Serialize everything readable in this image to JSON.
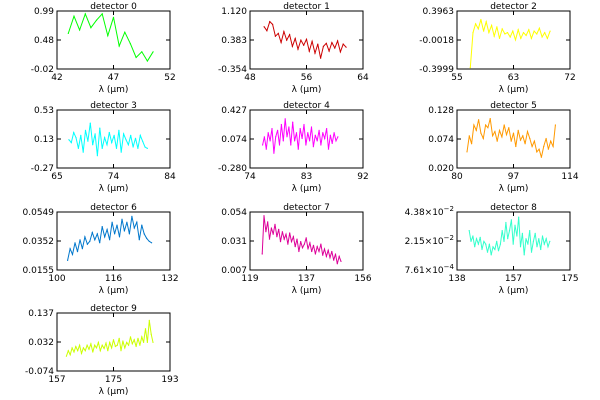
{
  "chart_data": [
    {
      "type": "line",
      "title": "detector 0",
      "xlabel": "λ (μm)",
      "color": "#00ff00",
      "xlim": [
        42,
        52
      ],
      "ylim": [
        -0.02,
        0.99
      ],
      "xticks": [
        "42",
        "47",
        "52"
      ],
      "yticks": [
        "0.99",
        "0.48",
        "-0.02"
      ],
      "x": [
        43,
        43.5,
        44,
        44.5,
        45,
        45.5,
        46,
        46.5,
        47,
        47.5,
        48,
        48.5,
        49,
        49.5,
        50,
        50.5
      ],
      "y": [
        0.6,
        0.9,
        0.66,
        0.94,
        0.7,
        0.83,
        0.94,
        0.56,
        0.88,
        0.38,
        0.62,
        0.42,
        0.18,
        0.28,
        0.12,
        0.28
      ]
    },
    {
      "type": "line",
      "title": "detector 1",
      "xlabel": "λ (μm)",
      "color": "#cc0000",
      "xlim": [
        48,
        64
      ],
      "ylim": [
        -0.354,
        1.12
      ],
      "xticks": [
        "48",
        "56",
        "64"
      ],
      "yticks": [
        "1.120",
        "0.383",
        "-0.354"
      ],
      "x": [
        50,
        50.4,
        50.8,
        51.2,
        51.6,
        52,
        52.4,
        52.8,
        53.2,
        53.6,
        54,
        54.4,
        54.8,
        55.2,
        55.6,
        56,
        56.4,
        56.8,
        57.2,
        57.6,
        58,
        58.4,
        58.8,
        59.2,
        59.6,
        60,
        60.4,
        60.8,
        61.2,
        61.6
      ],
      "y": [
        0.72,
        0.62,
        0.85,
        0.78,
        0.48,
        0.55,
        0.32,
        0.6,
        0.38,
        0.52,
        0.22,
        0.42,
        0.15,
        0.38,
        0.25,
        0.4,
        0.1,
        0.35,
        0.05,
        0.28,
        -0.08,
        0.22,
        0.3,
        0.1,
        0.32,
        0.18,
        0.36,
        0.08,
        0.28,
        0.2
      ]
    },
    {
      "type": "line",
      "title": "detector 2",
      "xlabel": "λ (μm)",
      "color": "#ffff00",
      "xlim": [
        55,
        72
      ],
      "ylim": [
        -0.3999,
        0.3963
      ],
      "xticks": [
        "55",
        "63",
        "72"
      ],
      "yticks": [
        "0.3963",
        "-0.0018",
        "-0.3999"
      ],
      "x": [
        57,
        57.4,
        57.8,
        58.2,
        58.6,
        59,
        59.4,
        59.8,
        60.2,
        60.6,
        61,
        61.4,
        61.8,
        62.2,
        62.6,
        63,
        63.4,
        63.8,
        64.2,
        64.6,
        65,
        65.4,
        65.8,
        66.2,
        66.6,
        67,
        67.4,
        67.8,
        68.2,
        68.6,
        69
      ],
      "y": [
        -0.38,
        0.1,
        0.22,
        0.15,
        0.28,
        0.12,
        0.25,
        0.1,
        0.2,
        0.05,
        0.18,
        0.02,
        0.15,
        0.08,
        0.1,
        0.04,
        0.12,
        0.0,
        0.14,
        0.02,
        0.1,
        0.06,
        0.14,
        0.02,
        0.12,
        0.08,
        0.16,
        0.04,
        0.1,
        0.02,
        0.12
      ]
    },
    {
      "type": "line",
      "title": "detector 3",
      "xlabel": "λ (μm)",
      "color": "#00ffff",
      "xlim": [
        65,
        84
      ],
      "ylim": [
        -0.27,
        0.53
      ],
      "xticks": [
        "65",
        "74",
        "84"
      ],
      "yticks": [
        "0.53",
        "0.13",
        "-0.27"
      ],
      "x": [
        67,
        67.4,
        67.8,
        68.2,
        68.6,
        69,
        69.4,
        69.8,
        70.2,
        70.6,
        71,
        71.4,
        71.8,
        72.2,
        72.6,
        73,
        73.4,
        73.8,
        74.2,
        74.6,
        75,
        75.4,
        75.8,
        76.2,
        76.6,
        77,
        77.4,
        77.8,
        78.2,
        78.6,
        79,
        79.4,
        79.8,
        80.2
      ],
      "y": [
        0.12,
        0.08,
        0.22,
        0.15,
        0.0,
        0.18,
        -0.05,
        0.25,
        0.1,
        0.35,
        0.05,
        0.2,
        -0.1,
        0.28,
        0.0,
        0.15,
        0.05,
        0.22,
        0.08,
        0.18,
        0.0,
        0.25,
        -0.05,
        0.2,
        0.12,
        0.05,
        0.18,
        0.02,
        0.14,
        0.0,
        0.18,
        0.1,
        0.02,
        0.0
      ]
    },
    {
      "type": "line",
      "title": "detector 4",
      "xlabel": "λ (μm)",
      "color": "#ff00ff",
      "xlim": [
        74,
        92
      ],
      "ylim": [
        -0.28,
        0.427
      ],
      "xticks": [
        "74",
        "83",
        "92"
      ],
      "yticks": [
        "0.427",
        "0.074",
        "-0.280"
      ],
      "x": [
        76,
        76.3,
        76.6,
        76.9,
        77.2,
        77.5,
        77.8,
        78.1,
        78.4,
        78.7,
        79,
        79.3,
        79.6,
        79.9,
        80.2,
        80.5,
        80.8,
        81.1,
        81.4,
        81.7,
        82,
        82.3,
        82.6,
        82.9,
        83.2,
        83.5,
        83.8,
        84.1,
        84.4,
        84.7,
        85,
        85.3,
        85.6,
        85.9,
        86.2,
        86.5,
        86.8,
        87.1,
        87.4,
        87.7,
        88
      ],
      "y": [
        0.0,
        0.1,
        -0.05,
        0.15,
        0.05,
        0.2,
        -0.1,
        0.1,
        0.18,
        0.0,
        0.25,
        0.05,
        0.32,
        0.1,
        0.22,
        0.0,
        0.28,
        0.05,
        0.15,
        -0.05,
        0.2,
        0.08,
        0.25,
        0.0,
        0.15,
        0.05,
        0.22,
        -0.02,
        0.12,
        0.05,
        0.18,
        0.0,
        0.15,
        0.08,
        0.2,
        -0.05,
        0.12,
        0.02,
        0.15,
        0.05,
        0.1
      ]
    },
    {
      "type": "line",
      "title": "detector 5",
      "xlabel": "λ (μm)",
      "color": "#ff9900",
      "xlim": [
        80,
        114
      ],
      "ylim": [
        0.02,
        0.128
      ],
      "xticks": [
        "80",
        "97",
        "114"
      ],
      "yticks": [
        "0.128",
        "0.074",
        "0.020"
      ],
      "x": [
        83,
        83.7,
        84.4,
        85.1,
        85.8,
        86.5,
        87.2,
        87.9,
        88.6,
        89.3,
        90,
        90.7,
        91.4,
        92.1,
        92.8,
        93.5,
        94.2,
        94.9,
        95.6,
        96.3,
        97,
        97.7,
        98.4,
        99.1,
        99.8,
        100.5,
        101.2,
        101.9,
        102.6,
        103.3,
        104,
        104.7,
        105.4,
        106.1,
        106.8,
        107.5,
        108.2,
        108.9,
        109.6
      ],
      "y": [
        0.05,
        0.08,
        0.065,
        0.1,
        0.09,
        0.11,
        0.085,
        0.075,
        0.1,
        0.095,
        0.112,
        0.08,
        0.088,
        0.07,
        0.09,
        0.078,
        0.1,
        0.082,
        0.095,
        0.07,
        0.085,
        0.06,
        0.09,
        0.072,
        0.08,
        0.065,
        0.088,
        0.075,
        0.06,
        0.07,
        0.05,
        0.055,
        0.04,
        0.06,
        0.075,
        0.055,
        0.07,
        0.06,
        0.1
      ]
    },
    {
      "type": "line",
      "title": "detector 6",
      "xlabel": "λ (μm)",
      "color": "#0077cc",
      "xlim": [
        100,
        132
      ],
      "ylim": [
        0.0155,
        0.0549
      ],
      "xticks": [
        "100",
        "116",
        "132"
      ],
      "yticks": [
        "0.0549",
        "0.0352",
        "0.0155"
      ],
      "x": [
        103,
        103.7,
        104.4,
        105.1,
        105.8,
        106.5,
        107.2,
        107.9,
        108.6,
        109.3,
        110,
        110.7,
        111.4,
        112.1,
        112.8,
        113.5,
        114.2,
        114.9,
        115.6,
        116.3,
        117,
        117.7,
        118.4,
        119.1,
        119.8,
        120.5,
        121.2,
        121.9,
        122.6,
        123.3,
        124,
        124.7,
        125.4,
        126.1,
        126.8
      ],
      "y": [
        0.022,
        0.03,
        0.026,
        0.034,
        0.028,
        0.036,
        0.03,
        0.038,
        0.033,
        0.035,
        0.041,
        0.036,
        0.04,
        0.034,
        0.045,
        0.038,
        0.043,
        0.036,
        0.048,
        0.04,
        0.046,
        0.038,
        0.05,
        0.042,
        0.048,
        0.04,
        0.052,
        0.044,
        0.048,
        0.036,
        0.046,
        0.04,
        0.037,
        0.035,
        0.034
      ]
    },
    {
      "type": "line",
      "title": "detector 7",
      "xlabel": "λ (μm)",
      "color": "#dd0099",
      "xlim": [
        119,
        156
      ],
      "ylim": [
        0.007,
        0.054
      ],
      "xticks": [
        "119",
        "137",
        "156"
      ],
      "yticks": [
        "0.054",
        "0.031",
        "0.007"
      ],
      "x": [
        123,
        123.6,
        124.2,
        124.8,
        125.4,
        126,
        126.6,
        127.2,
        127.8,
        128.4,
        129,
        129.6,
        130.2,
        130.8,
        131.4,
        132,
        132.6,
        133.2,
        133.8,
        134.4,
        135,
        135.6,
        136.2,
        136.8,
        137.4,
        138,
        138.6,
        139.2,
        139.8,
        140.4,
        141,
        141.6,
        142.2,
        142.8,
        143.4,
        144,
        144.6,
        145.2,
        145.8,
        146.4,
        147,
        147.6,
        148.2,
        148.8
      ],
      "y": [
        0.02,
        0.051,
        0.038,
        0.046,
        0.032,
        0.041,
        0.036,
        0.044,
        0.034,
        0.04,
        0.03,
        0.038,
        0.032,
        0.036,
        0.028,
        0.037,
        0.03,
        0.034,
        0.026,
        0.032,
        0.022,
        0.03,
        0.025,
        0.028,
        0.033,
        0.024,
        0.029,
        0.022,
        0.027,
        0.02,
        0.026,
        0.022,
        0.028,
        0.019,
        0.024,
        0.018,
        0.023,
        0.017,
        0.022,
        0.015,
        0.02,
        0.012,
        0.018,
        0.014
      ]
    },
    {
      "type": "line",
      "title": "detector 8",
      "xlabel": "λ (μm)",
      "color": "#33ffcc",
      "xlim": [
        138,
        175
      ],
      "ylim": [
        0.000761,
        0.0438
      ],
      "xticks": [
        "138",
        "157",
        "175"
      ],
      "yticks": [
        {
          "mantissa": "4.38×10",
          "exponent": "−2"
        },
        {
          "mantissa": "2.15×10",
          "exponent": "−2"
        },
        {
          "mantissa": "7.61×10",
          "exponent": "−4"
        }
      ],
      "x": [
        142,
        142.6,
        143.2,
        143.8,
        144.4,
        145,
        145.6,
        146.2,
        146.8,
        147.4,
        148,
        148.6,
        149.2,
        149.8,
        150.4,
        151,
        151.6,
        152.2,
        152.8,
        153.4,
        154,
        154.6,
        155.2,
        155.8,
        156.4,
        157,
        157.6,
        158.2,
        158.8,
        159.4,
        160,
        160.6,
        161.2,
        161.8,
        162.4,
        163,
        163.6,
        164.2,
        164.8,
        165.4,
        166,
        166.6,
        167.2,
        167.8,
        168.4
      ],
      "y": [
        0.03,
        0.022,
        0.026,
        0.018,
        0.024,
        0.02,
        0.025,
        0.016,
        0.022,
        0.02,
        0.014,
        0.02,
        0.012,
        0.018,
        0.016,
        0.022,
        0.015,
        0.02,
        0.03,
        0.022,
        0.036,
        0.024,
        0.03,
        0.038,
        0.02,
        0.034,
        0.026,
        0.04,
        0.018,
        0.028,
        0.012,
        0.024,
        0.02,
        0.03,
        0.014,
        0.022,
        0.028,
        0.018,
        0.024,
        0.016,
        0.026,
        0.02,
        0.024,
        0.018,
        0.022
      ]
    },
    {
      "type": "line",
      "title": "detector 9",
      "xlabel": "λ (μm)",
      "color": "#ccff00",
      "xlim": [
        157,
        193
      ],
      "ylim": [
        -0.074,
        0.137
      ],
      "xticks": [
        "157",
        "175",
        "193"
      ],
      "yticks": [
        "0.137",
        "0.032",
        "-0.074"
      ],
      "x": [
        160,
        160.6,
        161.2,
        161.8,
        162.4,
        163,
        163.6,
        164.2,
        164.8,
        165.4,
        166,
        166.6,
        167.2,
        167.8,
        168.4,
        169,
        169.6,
        170.2,
        170.8,
        171.4,
        172,
        172.6,
        173.2,
        173.8,
        174.4,
        175,
        175.6,
        176.2,
        176.8,
        177.4,
        178,
        178.6,
        179.2,
        179.8,
        180.4,
        181,
        181.6,
        182.2,
        182.8,
        183.4,
        184,
        184.6,
        185.2,
        185.8,
        186.4,
        187,
        187.6
      ],
      "y": [
        -0.02,
        0.0,
        -0.015,
        0.01,
        -0.005,
        0.015,
        0.0,
        0.02,
        -0.01,
        0.01,
        0.0,
        0.02,
        0.005,
        0.025,
        -0.005,
        0.02,
        0.01,
        0.03,
        0.0,
        0.02,
        0.008,
        0.028,
        0.0,
        0.03,
        0.01,
        0.04,
        0.015,
        0.02,
        0.045,
        0.0,
        0.035,
        0.01,
        0.03,
        0.02,
        0.05,
        0.025,
        0.04,
        0.015,
        0.045,
        0.02,
        0.05,
        0.03,
        0.08,
        0.03,
        0.11,
        0.06,
        0.03
      ]
    }
  ]
}
